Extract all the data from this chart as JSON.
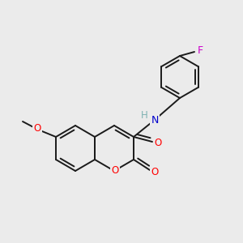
{
  "background_color": "#ebebeb",
  "bond_color": "#1a1a1a",
  "atom_colors": {
    "O": "#ff0000",
    "N": "#0000cc",
    "F": "#cc00cc",
    "H": "#7fb3b3",
    "C": "#1a1a1a"
  },
  "figsize": [
    3.0,
    3.0
  ],
  "dpi": 100
}
